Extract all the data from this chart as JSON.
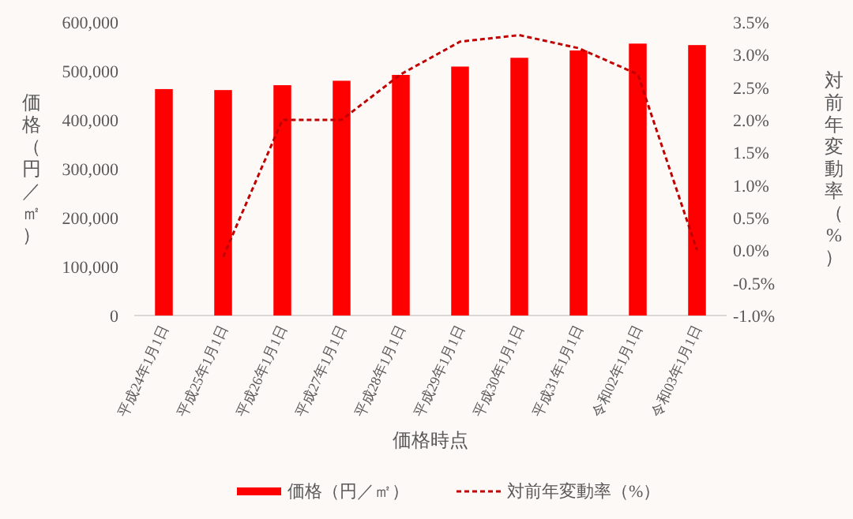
{
  "chart_data": {
    "type": "bar",
    "xlabel": "価格時点",
    "ylabel": "価格（円／㎡）",
    "y2label": "対前年変動率（%）",
    "categories": [
      "平成24年1月1日",
      "平成25年1月1日",
      "平成26年1月1日",
      "平成27年1月1日",
      "平成28年1月1日",
      "平成29年1月1日",
      "平成30年1月1日",
      "平成31年1月1日",
      "令和02年1月1日",
      "令和03年1月1日"
    ],
    "series": [
      {
        "name": "価格（円／㎡）",
        "color": "#ff0000",
        "values": [
          463000,
          461000,
          471000,
          480000,
          492000,
          509000,
          527000,
          542000,
          556000,
          553000
        ]
      },
      {
        "name": "対前年変動率（%）",
        "type": "line",
        "axis": "y2",
        "color": "#c00000",
        "line_style": "dashed",
        "marker": "none",
        "values": [
          null,
          -0.1,
          2.0,
          2.0,
          2.7,
          3.2,
          3.3,
          3.1,
          2.7,
          0.0
        ]
      }
    ],
    "ylim": [
      0,
      600000
    ],
    "yticks": [
      {
        "value": 0,
        "label": "0"
      },
      {
        "value": 100000,
        "label": "100,000"
      },
      {
        "value": 200000,
        "label": "200,000"
      },
      {
        "value": 300000,
        "label": "300,000"
      },
      {
        "value": 400000,
        "label": "400,000"
      },
      {
        "value": 500000,
        "label": "500,000"
      },
      {
        "value": 600000,
        "label": "600,000"
      }
    ],
    "y2lim": [
      -1.0,
      3.5
    ],
    "y2ticks": [
      {
        "value": -1.0,
        "label": "-1.0%"
      },
      {
        "value": -0.5,
        "label": "-0.5%"
      },
      {
        "value": 0.0,
        "label": "0.0%"
      },
      {
        "value": 0.5,
        "label": "0.5%"
      },
      {
        "value": 1.0,
        "label": "1.0%"
      },
      {
        "value": 1.5,
        "label": "1.5%"
      },
      {
        "value": 2.0,
        "label": "2.0%"
      },
      {
        "value": 2.5,
        "label": "2.5%"
      },
      {
        "value": 3.0,
        "label": "3.0%"
      },
      {
        "value": 3.5,
        "label": "3.5%"
      }
    ],
    "grid": false,
    "legend": "bottom"
  }
}
